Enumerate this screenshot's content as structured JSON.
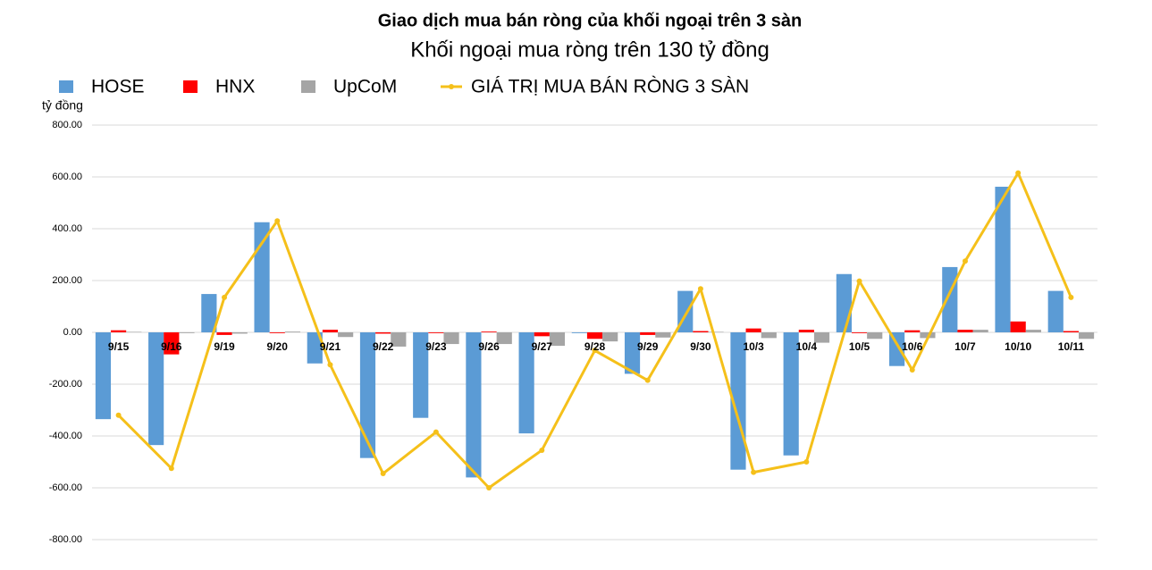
{
  "chart_data": {
    "type": "bar",
    "title": "Giao dịch mua bán ròng của khối ngoại trên 3 sàn",
    "subtitle": "Khối ngoại mua ròng trên 130 tỷ đồng",
    "y_label": "tỷ đồng",
    "categories": [
      "9/15",
      "9/16",
      "9/19",
      "9/20",
      "9/21",
      "9/22",
      "9/23",
      "9/26",
      "9/27",
      "9/28",
      "9/29",
      "9/30",
      "10/3",
      "10/4",
      "10/5",
      "10/6",
      "10/7",
      "10/10",
      "10/11"
    ],
    "series": [
      {
        "name": "HOSE",
        "color": "#5b9bd5",
        "type": "bar",
        "values": [
          -335,
          -435,
          148,
          425,
          -120,
          -485,
          -330,
          -560,
          -390,
          -3,
          -160,
          160,
          -530,
          -475,
          225,
          -130,
          252,
          562,
          160
        ]
      },
      {
        "name": "HNX",
        "color": "#ff0000",
        "type": "bar",
        "values": [
          8,
          -85,
          -10,
          -3,
          10,
          -5,
          -3,
          3,
          -15,
          -25,
          -10,
          5,
          15,
          10,
          -3,
          8,
          10,
          42,
          5
        ]
      },
      {
        "name": "UpCoM",
        "color": "#a5a5a5",
        "type": "bar",
        "values": [
          2,
          -3,
          -5,
          3,
          -18,
          -55,
          -45,
          -45,
          -52,
          -35,
          -20,
          2,
          -22,
          -40,
          -25,
          -22,
          10,
          10,
          -25
        ]
      },
      {
        "name": "GIÁ TRỊ MUA BÁN RÒNG 3 SÀN",
        "color": "#f5c01a",
        "type": "line",
        "values": [
          -320,
          -525,
          135,
          430,
          -125,
          -545,
          -385,
          -600,
          -455,
          -70,
          -185,
          168,
          -540,
          -500,
          198,
          -145,
          275,
          615,
          135
        ]
      }
    ],
    "ylim": [
      -800,
      800
    ],
    "yticks": [
      {
        "value": -800,
        "label": "-800.00"
      },
      {
        "value": -600,
        "label": "-600.00"
      },
      {
        "value": -400,
        "label": "-400.00"
      },
      {
        "value": -200,
        "label": "-200.00"
      },
      {
        "value": 0,
        "label": "0.00"
      },
      {
        "value": 200,
        "label": "200.00"
      },
      {
        "value": 400,
        "label": "400.00"
      },
      {
        "value": 600,
        "label": "600.00"
      },
      {
        "value": 800,
        "label": "800.00"
      }
    ],
    "grid": true
  }
}
